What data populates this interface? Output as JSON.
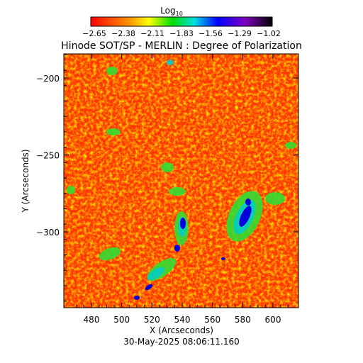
{
  "colorbar": {
    "title": "Log",
    "title_subscript": "10",
    "ticks": [
      "−2.65",
      "−2.38",
      "−2.11",
      "−1.83",
      "−1.56",
      "−1.29",
      "−1.02"
    ],
    "colors": [
      "#ff0000",
      "#ff9900",
      "#ffff00",
      "#00dd00",
      "#00e0e0",
      "#0000ff",
      "#8000c0",
      "#000000"
    ]
  },
  "title": "Hinode SOT/SP - MERLIN : Degree of Polarization",
  "xlabel": "X (Arcseconds)",
  "ylabel": "Y (Arcseconds)",
  "x_ticks": [
    "480",
    "500",
    "520",
    "540",
    "560",
    "580",
    "600"
  ],
  "y_ticks": [
    "−200",
    "−250",
    "−300"
  ],
  "timestamp": "30-May-2025 08:06:11.160"
}
